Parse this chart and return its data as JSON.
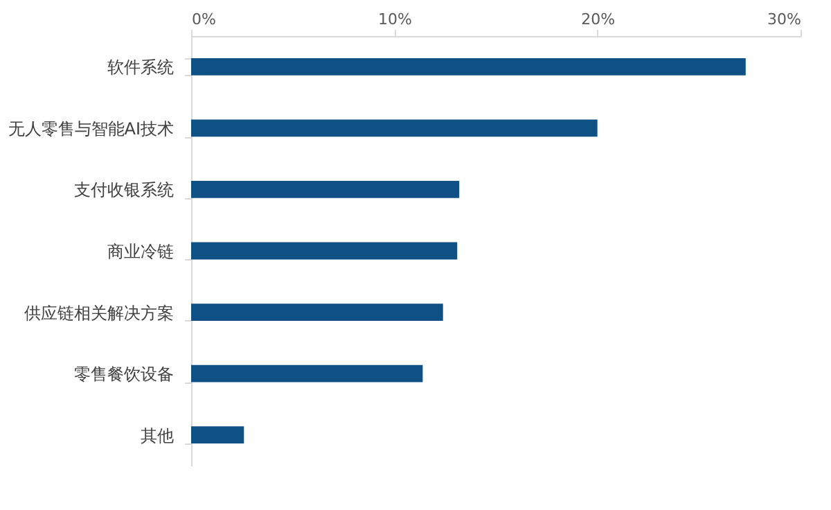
{
  "chart_data": {
    "type": "bar",
    "orientation": "horizontal",
    "categories": [
      "软件系统",
      "无人零售与智能AI技术",
      "支付收银系统",
      "商业冷链",
      "供应链相关解决方案",
      "零售餐饮设备",
      "其他"
    ],
    "values": [
      27.3,
      20.0,
      13.2,
      13.1,
      12.4,
      11.4,
      2.6
    ],
    "color": "#0f5185",
    "xlim": [
      0,
      30
    ],
    "xticks": [
      {
        "value": 0,
        "label": "0%"
      },
      {
        "value": 10,
        "label": "10%"
      },
      {
        "value": 20,
        "label": "20%"
      },
      {
        "value": 30,
        "label": "30%"
      }
    ],
    "grid": false
  }
}
